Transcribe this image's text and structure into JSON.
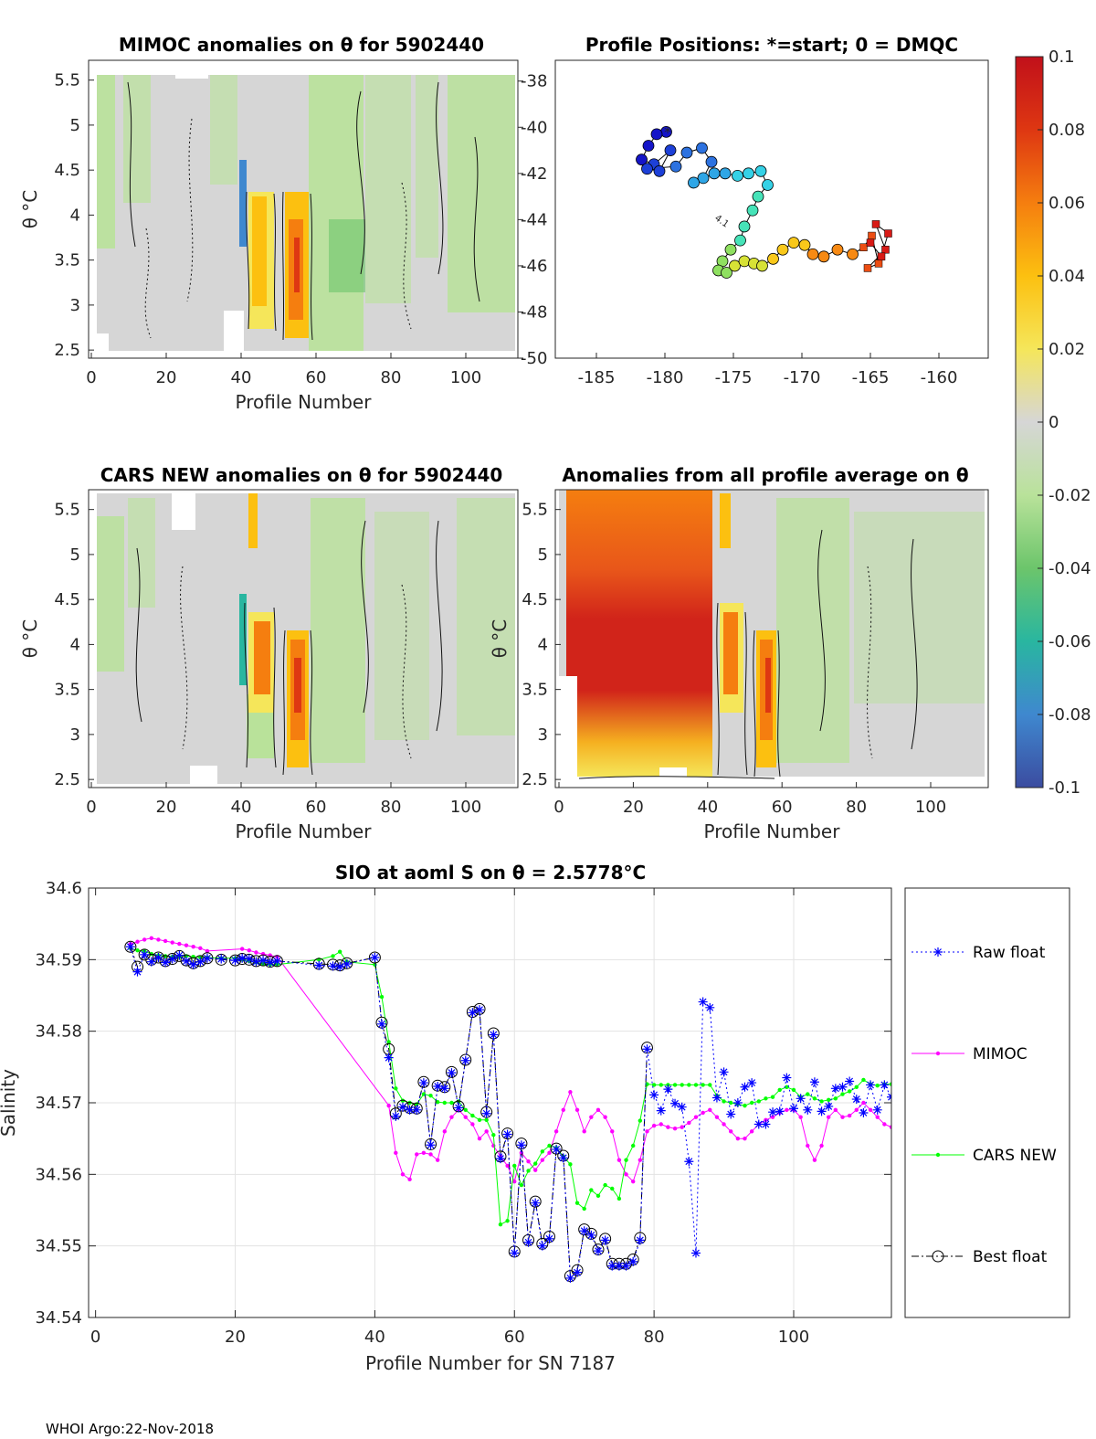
{
  "footer": "WHOI Argo:22-Nov-2018",
  "colorbar": {
    "ticks": [
      "0.1",
      "0.08",
      "0.06",
      "0.04",
      "0.02",
      "0",
      "-0.02",
      "-0.04",
      "-0.06",
      "-0.08",
      "-0.1"
    ],
    "range": [
      -0.1,
      0.1
    ],
    "colors": [
      "#3b4ca0",
      "#3f88cf",
      "#29b6a0",
      "#6cc56b",
      "#b9e29a",
      "#d6d6d6",
      "#f5e65a",
      "#fcc010",
      "#f57e0f",
      "#de3712",
      "#c1101a"
    ]
  },
  "panels": {
    "mimoc": {
      "title": "MIMOC anomalies on θ  for 5902440",
      "ylabel": "θ °C",
      "xlabel": "Profile Number",
      "yticks": [
        "5.5",
        "5",
        "4.5",
        "4",
        "3.5",
        "3",
        "2.5"
      ],
      "xticks": [
        "0",
        "20",
        "40",
        "60",
        "80",
        "100"
      ]
    },
    "positions": {
      "title": "Profile Positions: *=start; 0 = DMQC",
      "yticks": [
        "-38",
        "-40",
        "-42",
        "-44",
        "-46",
        "-48",
        "-50"
      ],
      "xticks": [
        "-185",
        "-180",
        "-175",
        "-170",
        "-165",
        "-160"
      ],
      "track_label": "4.1",
      "track": [
        {
          "lon": -179.9,
          "lat": -40.2
        },
        {
          "lon": -180.6,
          "lat": -40.3
        },
        {
          "lon": -181.2,
          "lat": -40.8
        },
        {
          "lon": -181.7,
          "lat": -41.4
        },
        {
          "lon": -180.8,
          "lat": -41.6
        },
        {
          "lon": -179.6,
          "lat": -41.0
        },
        {
          "lon": -180.4,
          "lat": -41.9
        },
        {
          "lon": -181.3,
          "lat": -41.8
        },
        {
          "lon": -179.2,
          "lat": -41.7
        },
        {
          "lon": -178.4,
          "lat": -41.1
        },
        {
          "lon": -177.3,
          "lat": -40.9
        },
        {
          "lon": -176.6,
          "lat": -41.5
        },
        {
          "lon": -177.2,
          "lat": -42.2
        },
        {
          "lon": -177.9,
          "lat": -42.4
        },
        {
          "lon": -176.4,
          "lat": -42.0
        },
        {
          "lon": -175.6,
          "lat": -42.0
        },
        {
          "lon": -174.7,
          "lat": -42.1
        },
        {
          "lon": -173.9,
          "lat": -42.0
        },
        {
          "lon": -173.0,
          "lat": -41.9
        },
        {
          "lon": -172.5,
          "lat": -42.5
        },
        {
          "lon": -173.2,
          "lat": -43.0
        },
        {
          "lon": -173.6,
          "lat": -43.6
        },
        {
          "lon": -174.2,
          "lat": -44.3
        },
        {
          "lon": -174.5,
          "lat": -44.9
        },
        {
          "lon": -175.2,
          "lat": -45.3
        },
        {
          "lon": -175.8,
          "lat": -45.8
        },
        {
          "lon": -176.1,
          "lat": -46.2
        },
        {
          "lon": -175.5,
          "lat": -46.3
        },
        {
          "lon": -174.9,
          "lat": -46.0
        },
        {
          "lon": -174.2,
          "lat": -45.8
        },
        {
          "lon": -173.5,
          "lat": -45.9
        },
        {
          "lon": -172.9,
          "lat": -46.0
        },
        {
          "lon": -172.1,
          "lat": -45.7
        },
        {
          "lon": -171.4,
          "lat": -45.3
        },
        {
          "lon": -170.6,
          "lat": -45.0
        },
        {
          "lon": -169.8,
          "lat": -45.1
        },
        {
          "lon": -169.2,
          "lat": -45.5
        },
        {
          "lon": -168.4,
          "lat": -45.6
        },
        {
          "lon": -167.4,
          "lat": -45.3
        },
        {
          "lon": -166.3,
          "lat": -45.5
        },
        {
          "lon": -165.5,
          "lat": -45.2
        },
        {
          "lon": -164.9,
          "lat": -44.7
        },
        {
          "lon": -164.4,
          "lat": -45.9
        },
        {
          "lon": -165.2,
          "lat": -46.1
        },
        {
          "lon": -163.9,
          "lat": -45.3
        },
        {
          "lon": -164.6,
          "lat": -44.2
        },
        {
          "lon": -163.7,
          "lat": -44.6
        },
        {
          "lon": -164.2,
          "lat": -45.6
        },
        {
          "lon": -165.0,
          "lat": -45.0
        }
      ]
    },
    "cars": {
      "title": "CARS NEW anomalies on θ for 5902440",
      "ylabel": "θ °C",
      "xlabel": "Profile Number",
      "yticks": [
        "5.5",
        "5",
        "4.5",
        "4",
        "3.5",
        "3",
        "2.5"
      ],
      "xticks": [
        "0",
        "20",
        "40",
        "60",
        "80",
        "100"
      ]
    },
    "avg": {
      "title": "Anomalies from all profile average on θ",
      "ylabel": "θ °C",
      "xlabel": "Profile Number",
      "yticks": [
        "5.5",
        "5",
        "4.5",
        "4",
        "3.5",
        "3",
        "2.5"
      ],
      "xticks": [
        "0",
        "20",
        "40",
        "60",
        "80",
        "100"
      ]
    }
  },
  "chart_data": {
    "type": "line",
    "title": "SIO at aoml S on θ = 2.5778°C",
    "xlabel": "Profile Number for SN 7187",
    "ylabel": "Salinity",
    "xlim": [
      -1,
      114
    ],
    "ylim": [
      34.54,
      34.6
    ],
    "xticks": [
      "0",
      "20",
      "40",
      "60",
      "80",
      "100"
    ],
    "yticks": [
      "34.6",
      "34.59",
      "34.58",
      "34.57",
      "34.56",
      "34.55",
      "34.54"
    ],
    "grid": true,
    "legend_position": "outside-right",
    "series": [
      {
        "name": "Raw float",
        "color": "#0000ff",
        "style": "dotted",
        "marker": "star",
        "x": [
          5,
          6,
          7,
          8,
          9,
          10,
          11,
          12,
          13,
          14,
          15,
          16,
          18,
          20,
          21,
          22,
          23,
          24,
          25,
          26,
          32,
          34,
          35,
          36,
          40,
          41,
          42,
          43,
          44,
          45,
          46,
          47,
          48,
          49,
          50,
          51,
          52,
          53,
          54,
          55,
          56,
          57,
          58,
          59,
          60,
          61,
          62,
          63,
          64,
          65,
          66,
          67,
          68,
          69,
          70,
          71,
          72,
          73,
          74,
          75,
          76,
          77,
          78,
          79,
          80,
          81,
          82,
          83,
          84,
          85,
          86,
          87,
          88,
          89,
          90,
          91,
          92,
          93,
          94,
          95,
          96,
          97,
          98,
          99,
          100,
          101,
          102,
          103,
          104,
          105,
          106,
          107,
          108,
          109,
          110,
          111,
          112,
          113,
          114
        ],
        "y": [
          34.5918,
          34.5883,
          34.5907,
          34.5897,
          34.5903,
          34.5896,
          34.5901,
          34.5906,
          34.5898,
          34.5893,
          34.5897,
          34.5902,
          34.5901,
          34.5899,
          34.5902,
          34.5901,
          34.5897,
          34.5899,
          34.5896,
          34.5898,
          34.5892,
          34.5891,
          34.589,
          34.5894,
          34.5903,
          34.581,
          34.5763,
          34.5681,
          34.5694,
          34.569,
          34.569,
          34.5728,
          34.5641,
          34.5723,
          34.572,
          34.5742,
          34.5693,
          34.5759,
          34.5826,
          34.583,
          34.5685,
          34.5795,
          34.5622,
          34.5656,
          34.549,
          34.5641,
          34.5505,
          34.556,
          34.55,
          34.551,
          34.5635,
          34.5623,
          34.5455,
          34.5463,
          34.5521,
          34.5515,
          34.5493,
          34.5508,
          34.5472,
          34.5472,
          34.5472,
          34.5478,
          34.5508,
          34.5775,
          34.5711,
          34.5689,
          34.5719,
          34.5699,
          34.5694,
          34.5618,
          34.549,
          34.5841,
          34.5833,
          34.5707,
          34.5743,
          34.5684,
          34.57,
          34.5722,
          34.5728,
          34.567,
          34.567,
          34.5687,
          34.5688,
          34.5735,
          34.5692,
          34.5706,
          34.569,
          34.5729,
          34.5688,
          34.5695,
          34.572,
          34.5722,
          34.573,
          34.5705,
          34.5686,
          34.5725,
          34.569,
          34.5725,
          34.5708
        ]
      },
      {
        "name": "MIMOC",
        "color": "#ff00ff",
        "style": "solid",
        "marker": "dot",
        "x": [
          5,
          6,
          7,
          8,
          9,
          10,
          11,
          12,
          13,
          14,
          15,
          16,
          21,
          22,
          23,
          24,
          25,
          26,
          42,
          43,
          44,
          45,
          46,
          47,
          48,
          49,
          50,
          51,
          52,
          53,
          54,
          55,
          56,
          57,
          58,
          59,
          60,
          61,
          62,
          63,
          64,
          65,
          66,
          67,
          68,
          69,
          70,
          71,
          72,
          73,
          74,
          75,
          76,
          77,
          78,
          79,
          80,
          81,
          82,
          83,
          84,
          85,
          86,
          87,
          88,
          89,
          90,
          91,
          92,
          93,
          94,
          95,
          96,
          97,
          98,
          99,
          100,
          101,
          102,
          103,
          104,
          105,
          106,
          107,
          108,
          109,
          110,
          111,
          112,
          113,
          114
        ],
        "y": [
          34.5922,
          34.5925,
          34.5928,
          34.593,
          34.5928,
          34.5926,
          34.5924,
          34.5922,
          34.592,
          34.5918,
          34.5916,
          34.5912,
          34.5915,
          34.5913,
          34.591,
          34.5908,
          34.5906,
          34.5904,
          34.5696,
          34.563,
          34.56,
          34.5593,
          34.5628,
          34.563,
          34.5628,
          34.562,
          34.566,
          34.568,
          34.569,
          34.568,
          34.567,
          34.565,
          34.566,
          34.564,
          34.5625,
          34.5612,
          34.559,
          34.563,
          34.5618,
          34.5606,
          34.562,
          34.563,
          34.566,
          34.569,
          34.5715,
          34.569,
          34.566,
          34.568,
          34.569,
          34.568,
          34.566,
          34.562,
          34.56,
          34.559,
          34.562,
          34.566,
          34.5668,
          34.567,
          34.5666,
          34.5664,
          34.5666,
          34.5672,
          34.568,
          34.5686,
          34.569,
          34.568,
          34.567,
          34.566,
          34.565,
          34.565,
          34.566,
          34.567,
          34.5676,
          34.568,
          34.5686,
          34.569,
          34.569,
          34.568,
          34.564,
          34.562,
          34.564,
          34.568,
          34.569,
          34.568,
          34.5682,
          34.569,
          34.57,
          34.569,
          34.568,
          34.567,
          34.5666
        ]
      },
      {
        "name": "CARS NEW",
        "color": "#00ff00",
        "style": "solid",
        "marker": "dot",
        "x": [
          5,
          6,
          7,
          8,
          9,
          10,
          11,
          12,
          13,
          14,
          15,
          16,
          18,
          20,
          21,
          22,
          23,
          24,
          25,
          26,
          32,
          34,
          35,
          36,
          40,
          41,
          42,
          43,
          44,
          45,
          46,
          47,
          48,
          49,
          50,
          51,
          52,
          53,
          54,
          55,
          56,
          57,
          58,
          59,
          60,
          61,
          62,
          63,
          64,
          65,
          66,
          67,
          68,
          69,
          70,
          71,
          72,
          73,
          74,
          75,
          76,
          77,
          78,
          79,
          80,
          81,
          82,
          83,
          84,
          85,
          86,
          87,
          88,
          89,
          90,
          91,
          92,
          93,
          94,
          95,
          96,
          97,
          98,
          99,
          100,
          101,
          102,
          103,
          104,
          105,
          106,
          107,
          108,
          109,
          110,
          111,
          112,
          113,
          114
        ],
        "y": [
          34.5916,
          34.5913,
          34.5912,
          34.5908,
          34.5906,
          34.5905,
          34.5904,
          34.5904,
          34.5905,
          34.5904,
          34.5903,
          34.5903,
          34.5902,
          34.5902,
          34.59,
          34.5898,
          34.5896,
          34.5894,
          34.5893,
          34.5893,
          34.59,
          34.5905,
          34.5911,
          34.5897,
          34.5893,
          34.5848,
          34.5785,
          34.572,
          34.5703,
          34.57,
          34.5698,
          34.5712,
          34.571,
          34.5701,
          34.57,
          34.57,
          34.5702,
          34.569,
          34.5682,
          34.5676,
          34.5676,
          34.5655,
          34.553,
          34.5535,
          34.5612,
          34.5585,
          34.5605,
          34.5615,
          34.5632,
          34.564,
          34.5637,
          34.5625,
          34.5614,
          34.556,
          34.5552,
          34.5578,
          34.557,
          34.5585,
          34.558,
          34.5566,
          34.562,
          34.564,
          34.5675,
          34.5726,
          34.5725,
          34.5725,
          34.5725,
          34.5725,
          34.5725,
          34.5725,
          34.5725,
          34.5725,
          34.5725,
          34.571,
          34.5702,
          34.57,
          34.5698,
          34.5696,
          34.57,
          34.5702,
          34.5706,
          34.5708,
          34.5718,
          34.5722,
          34.5718,
          34.5708,
          34.5712,
          34.5706,
          34.5702,
          34.5704,
          34.5706,
          34.5712,
          34.5716,
          34.5722,
          34.5732,
          34.5726,
          34.5724,
          34.5726,
          34.5726
        ]
      },
      {
        "name": "Best float",
        "color": "#000000",
        "style": "dashdot",
        "marker": "circle",
        "x": [
          5,
          6,
          7,
          8,
          9,
          10,
          11,
          12,
          13,
          14,
          15,
          16,
          18,
          20,
          21,
          22,
          23,
          24,
          25,
          26,
          32,
          34,
          35,
          36,
          40,
          41,
          42,
          43,
          44,
          45,
          46,
          47,
          48,
          49,
          50,
          51,
          52,
          53,
          54,
          55,
          56,
          57,
          58,
          59,
          60,
          61,
          62,
          63,
          64,
          65,
          66,
          67,
          68,
          69,
          70,
          71,
          72,
          73,
          74,
          75,
          76,
          77,
          78,
          79
        ],
        "y": [
          34.5918,
          34.589,
          34.5907,
          34.59,
          34.5903,
          34.5898,
          34.5901,
          34.5905,
          34.5899,
          34.5895,
          34.5898,
          34.5902,
          34.59,
          34.5899,
          34.5901,
          34.59,
          34.5898,
          34.5899,
          34.5897,
          34.5898,
          34.5894,
          34.5893,
          34.5892,
          34.5895,
          34.5903,
          34.5812,
          34.5775,
          34.5685,
          34.5696,
          34.5693,
          34.5692,
          34.5729,
          34.5642,
          34.5724,
          34.5722,
          34.5743,
          34.5695,
          34.576,
          34.5827,
          34.5831,
          34.5687,
          34.5797,
          34.5625,
          34.5657,
          34.5492,
          34.5643,
          34.5508,
          34.5562,
          34.5503,
          34.5513,
          34.5636,
          34.5626,
          34.5458,
          34.5466,
          34.5523,
          34.5517,
          34.5495,
          34.551,
          34.5475,
          34.5475,
          34.5475,
          34.5481,
          34.5511,
          34.5777
        ]
      }
    ]
  }
}
